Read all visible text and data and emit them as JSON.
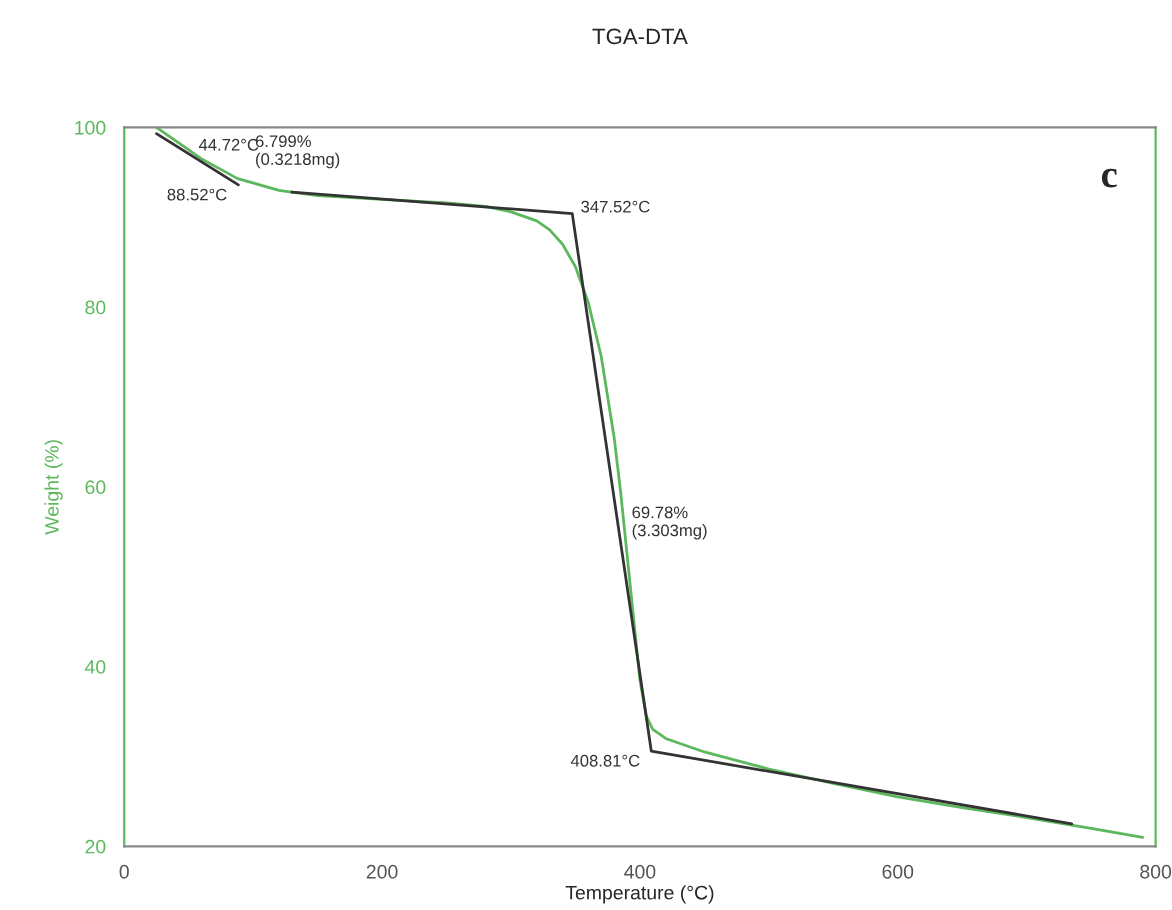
{
  "chart_data": {
    "type": "line",
    "title": "TGA-DTA",
    "xlabel": "Temperature (°C)",
    "ylabel": "Weight (%)",
    "xlim": [
      0,
      800
    ],
    "ylim": [
      20,
      100
    ],
    "xticks": [
      0,
      200,
      400,
      600,
      800
    ],
    "yticks": [
      20,
      40,
      60,
      80,
      100
    ],
    "grid": false,
    "legend": false,
    "series": [
      {
        "color": "#5cb85c",
        "x": [
          25,
          40,
          60,
          88,
          120,
          150,
          200,
          250,
          280,
          300,
          320,
          330,
          340,
          350,
          360,
          370,
          380,
          385,
          390,
          400,
          405,
          410,
          420,
          450,
          500,
          550,
          600,
          650,
          700,
          750,
          790
        ],
        "values": [
          100,
          98.5,
          96.5,
          94.3,
          93.0,
          92.4,
          92.0,
          91.6,
          91.2,
          90.6,
          89.6,
          88.6,
          87.0,
          84.5,
          80.5,
          74.5,
          65.5,
          59.5,
          52.5,
          38.5,
          34.5,
          33.0,
          32.0,
          30.5,
          28.6,
          27.0,
          25.5,
          24.3,
          23.2,
          22.0,
          21.0
        ]
      },
      {
        "color": "#333333",
        "x": [
          25,
          88.52
        ],
        "values": [
          99.3,
          93.6
        ]
      },
      {
        "color": "#333333",
        "x": [
          130,
          347.52,
          408.81,
          735
        ],
        "values": [
          92.8,
          90.4,
          30.6,
          22.5
        ]
      }
    ],
    "annotations": [
      {
        "text": "44.72°C",
        "x": 44.72,
        "y": 97.6
      },
      {
        "text": "6.799%\n(0.3218mg)",
        "x": 88.52,
        "y": 93.6
      },
      {
        "text": "88.52°C",
        "x": 88.52,
        "y": 93.6
      },
      {
        "text": "347.52°C",
        "x": 347.52,
        "y": 90.4
      },
      {
        "text": "69.78%\n(3.303mg)",
        "x": 382.8,
        "y": 56
      },
      {
        "text": "408.81°C",
        "x": 408.81,
        "y": 30.6
      },
      "c"
    ]
  }
}
